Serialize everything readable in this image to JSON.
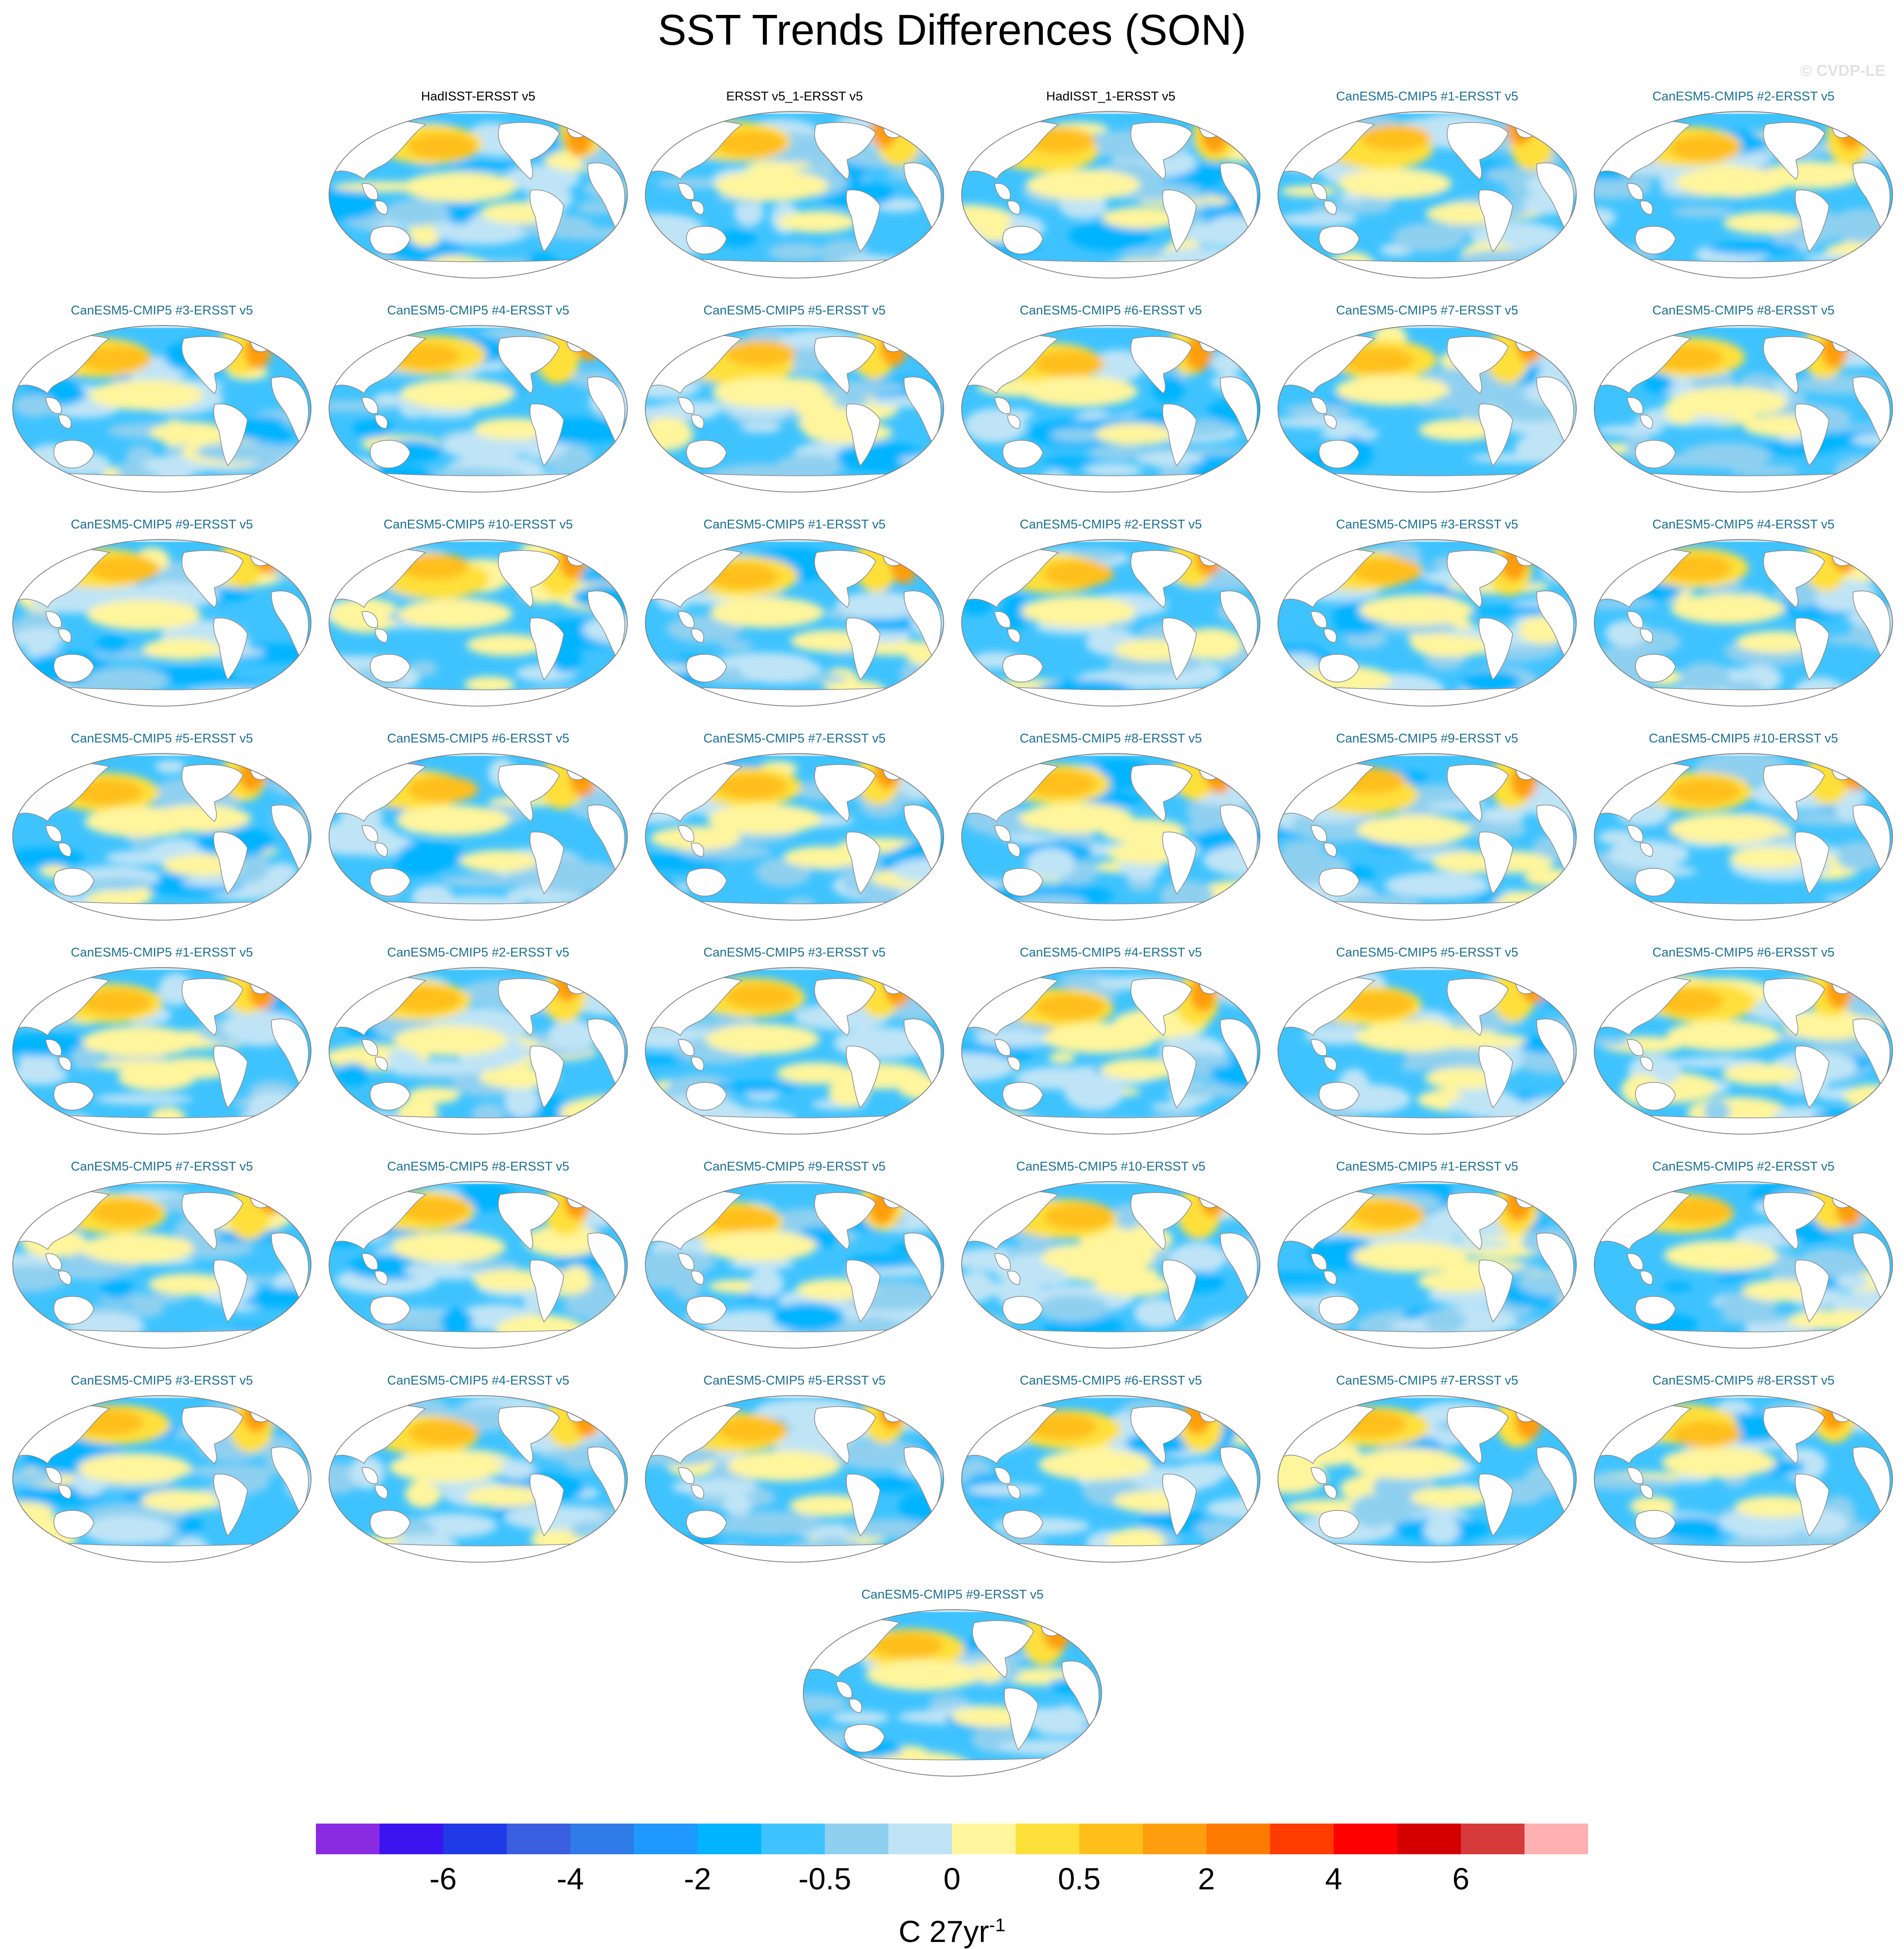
{
  "title": "SST Trends Differences (SON)",
  "watermark": "© CVDP-LE",
  "panels": [
    {
      "label": "HadISST-ERSST v5",
      "kind": "obs"
    },
    {
      "label": "ERSST v5_1-ERSST v5",
      "kind": "obs"
    },
    {
      "label": "HadISST_1-ERSST v5",
      "kind": "obs"
    },
    {
      "label": "CanESM5-CMIP5 #1-ERSST v5",
      "kind": "model"
    },
    {
      "label": "CanESM5-CMIP5 #2-ERSST v5",
      "kind": "model"
    },
    {
      "label": "CanESM5-CMIP5 #3-ERSST v5",
      "kind": "model"
    },
    {
      "label": "CanESM5-CMIP5 #4-ERSST v5",
      "kind": "model"
    },
    {
      "label": "CanESM5-CMIP5 #5-ERSST v5",
      "kind": "model"
    },
    {
      "label": "CanESM5-CMIP5 #6-ERSST v5",
      "kind": "model"
    },
    {
      "label": "CanESM5-CMIP5 #7-ERSST v5",
      "kind": "model"
    },
    {
      "label": "CanESM5-CMIP5 #8-ERSST v5",
      "kind": "model"
    },
    {
      "label": "CanESM5-CMIP5 #9-ERSST v5",
      "kind": "model"
    },
    {
      "label": "CanESM5-CMIP5 #10-ERSST v5",
      "kind": "model"
    },
    {
      "label": "CanESM5-CMIP5 #1-ERSST v5",
      "kind": "model"
    },
    {
      "label": "CanESM5-CMIP5 #2-ERSST v5",
      "kind": "model"
    },
    {
      "label": "CanESM5-CMIP5 #3-ERSST v5",
      "kind": "model"
    },
    {
      "label": "CanESM5-CMIP5 #4-ERSST v5",
      "kind": "model"
    },
    {
      "label": "CanESM5-CMIP5 #5-ERSST v5",
      "kind": "model"
    },
    {
      "label": "CanESM5-CMIP5 #6-ERSST v5",
      "kind": "model"
    },
    {
      "label": "CanESM5-CMIP5 #7-ERSST v5",
      "kind": "model"
    },
    {
      "label": "CanESM5-CMIP5 #8-ERSST v5",
      "kind": "model"
    },
    {
      "label": "CanESM5-CMIP5 #9-ERSST v5",
      "kind": "model"
    },
    {
      "label": "CanESM5-CMIP5 #10-ERSST v5",
      "kind": "model"
    },
    {
      "label": "CanESM5-CMIP5 #1-ERSST v5",
      "kind": "model"
    },
    {
      "label": "CanESM5-CMIP5 #2-ERSST v5",
      "kind": "model"
    },
    {
      "label": "CanESM5-CMIP5 #3-ERSST v5",
      "kind": "model"
    },
    {
      "label": "CanESM5-CMIP5 #4-ERSST v5",
      "kind": "model"
    },
    {
      "label": "CanESM5-CMIP5 #5-ERSST v5",
      "kind": "model"
    },
    {
      "label": "CanESM5-CMIP5 #6-ERSST v5",
      "kind": "model"
    },
    {
      "label": "CanESM5-CMIP5 #7-ERSST v5",
      "kind": "model"
    },
    {
      "label": "CanESM5-CMIP5 #8-ERSST v5",
      "kind": "model"
    },
    {
      "label": "CanESM5-CMIP5 #9-ERSST v5",
      "kind": "model"
    },
    {
      "label": "CanESM5-CMIP5 #10-ERSST v5",
      "kind": "model"
    },
    {
      "label": "CanESM5-CMIP5 #1-ERSST v5",
      "kind": "model"
    },
    {
      "label": "CanESM5-CMIP5 #2-ERSST v5",
      "kind": "model"
    },
    {
      "label": "CanESM5-CMIP5 #3-ERSST v5",
      "kind": "model"
    },
    {
      "label": "CanESM5-CMIP5 #4-ERSST v5",
      "kind": "model"
    },
    {
      "label": "CanESM5-CMIP5 #5-ERSST v5",
      "kind": "model"
    },
    {
      "label": "CanESM5-CMIP5 #6-ERSST v5",
      "kind": "model"
    },
    {
      "label": "CanESM5-CMIP5 #7-ERSST v5",
      "kind": "model"
    },
    {
      "label": "CanESM5-CMIP5 #8-ERSST v5",
      "kind": "model"
    },
    {
      "label": "CanESM5-CMIP5 #9-ERSST v5",
      "kind": "model"
    }
  ],
  "colorbar": {
    "colors": [
      "#8a2be2",
      "#3b14f0",
      "#1f3ae6",
      "#3a5ee0",
      "#2f7be8",
      "#1f99ff",
      "#00b4ff",
      "#3fc3ff",
      "#8fd0f0",
      "#bfe4f6",
      "#fff59d",
      "#ffe03a",
      "#ffbf1a",
      "#ff9e0f",
      "#ff7a00",
      "#ff3c00",
      "#ff0000",
      "#d40000",
      "#d73a3a",
      "#ffb0b0"
    ],
    "tick_labels": [
      "-6",
      "-4",
      "-2",
      "-0.5",
      "0",
      "0.5",
      "2",
      "4",
      "6"
    ],
    "unit": "C 27yr",
    "unit_exponent": "-1"
  }
}
